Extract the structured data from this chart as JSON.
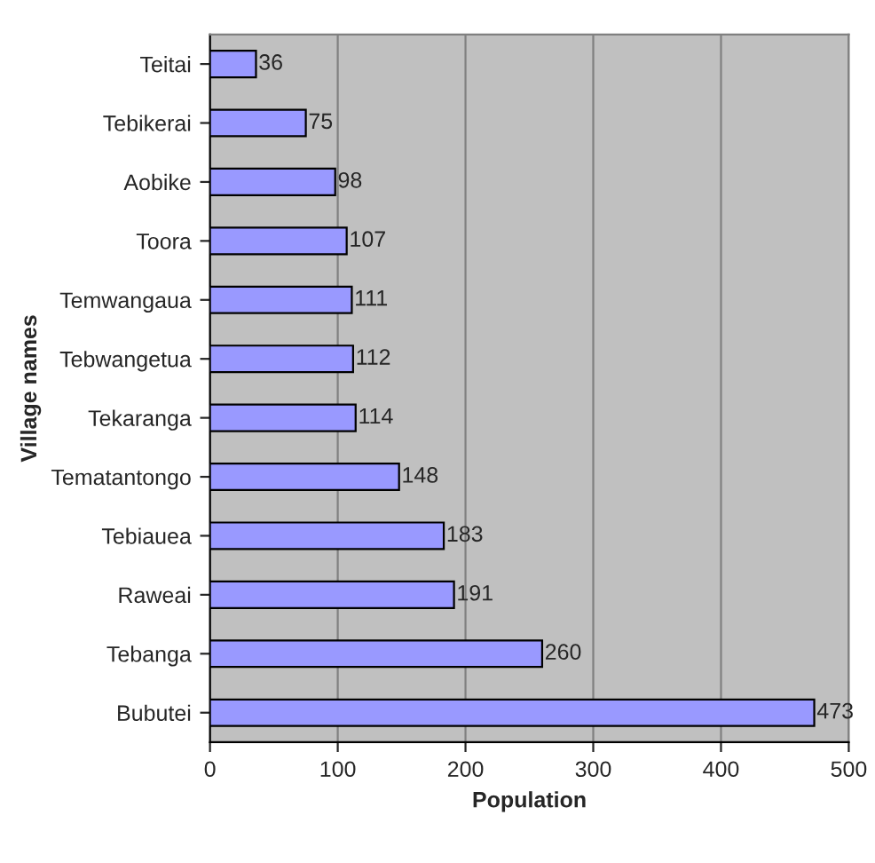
{
  "chart_data": {
    "type": "bar",
    "orientation": "horizontal",
    "xlabel": "Population",
    "ylabel": "Village names",
    "categories": [
      "Teitai",
      "Tebikerai",
      "Aobike",
      "Toora",
      "Temwangaua",
      "Tebwangetua",
      "Tekaranga",
      "Tematantongo",
      "Tebiauea",
      "Raweai",
      "Tebanga",
      "Bubutei"
    ],
    "values": [
      36,
      75,
      98,
      107,
      111,
      112,
      114,
      148,
      183,
      191,
      260,
      473
    ],
    "color": "#9999ff",
    "xlim": [
      0,
      500
    ],
    "xticks": [
      0,
      100,
      200,
      300,
      400,
      500
    ],
    "grid": "x",
    "data_labels": true
  }
}
